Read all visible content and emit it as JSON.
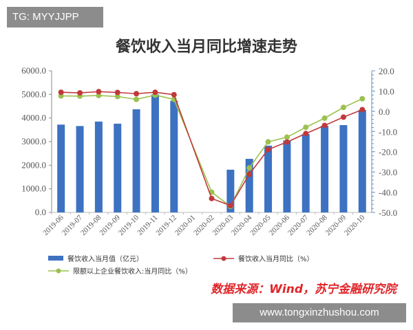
{
  "watermark": "TG: MYYJJPP",
  "footer_site": "www.tongxinzhushou.com",
  "source": "数据来源：Wind，苏宁金融研究院",
  "chart_data": {
    "type": "bar+line",
    "title": "餐饮收入当月同比增速走势",
    "categories": [
      "2019-06",
      "2019-07",
      "2019-08",
      "2019-09",
      "2019-10",
      "2019-11",
      "2019-12",
      "2020-01",
      "2020-02",
      "2020-03",
      "2020-04",
      "2020-05",
      "2020-06",
      "2020-07",
      "2020-08",
      "2020-09",
      "2020-10"
    ],
    "left_axis": {
      "ylim": [
        0,
        6000
      ],
      "ticks": [
        "0.0",
        "1000.0",
        "2000.0",
        "3000.0",
        "4000.0",
        "5000.0",
        "6000.0"
      ]
    },
    "right_axis": {
      "ylim": [
        -50,
        20
      ],
      "ticks": [
        "-50.0",
        "-40.0",
        "-30.0",
        "-20.0",
        "-10.0",
        "0.0",
        "10.0",
        "20.0"
      ]
    },
    "series": [
      {
        "name": "餐饮收入当月值（亿元）",
        "type": "bar",
        "axis": "left",
        "color": "#3d72c2",
        "values": [
          3720,
          3660,
          3850,
          3760,
          4370,
          5000,
          4730,
          null,
          null,
          1810,
          2270,
          2830,
          3050,
          3320,
          3670,
          3700,
          4340
        ]
      },
      {
        "name": "餐饮收入当月同比（%）",
        "type": "line",
        "axis": "right",
        "color": "#c0393b",
        "values": [
          9.4,
          9.1,
          9.7,
          9.3,
          8.7,
          9.4,
          8.2,
          null,
          -43.1,
          -46.6,
          -31.1,
          -18.9,
          -15.2,
          -11.0,
          -7.0,
          -2.9,
          0.8
        ]
      },
      {
        "name": "限额以上企业餐饮收入:当月同比（%）",
        "type": "line",
        "axis": "right",
        "color": "#9bc14f",
        "values": [
          7.6,
          7.5,
          7.8,
          7.3,
          5.9,
          8.0,
          5.9,
          null,
          -40.0,
          -47.0,
          -28.0,
          -15.1,
          -12.8,
          -7.9,
          -3.4,
          1.9,
          6.2
        ]
      }
    ]
  }
}
